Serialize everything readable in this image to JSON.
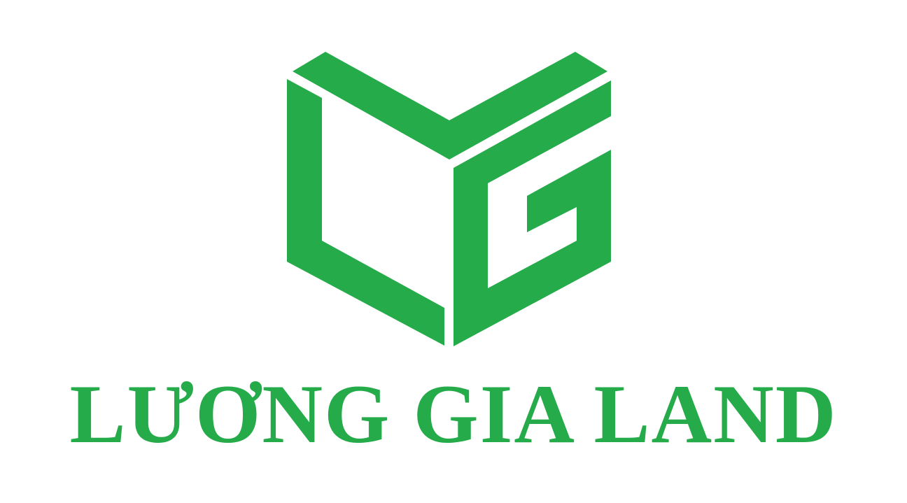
{
  "brand": {
    "name": "LƯƠNG GIA LAND",
    "logo_icon": "lg-cube-monogram-icon",
    "color": "#26ab4a",
    "background": "#ffffff"
  }
}
